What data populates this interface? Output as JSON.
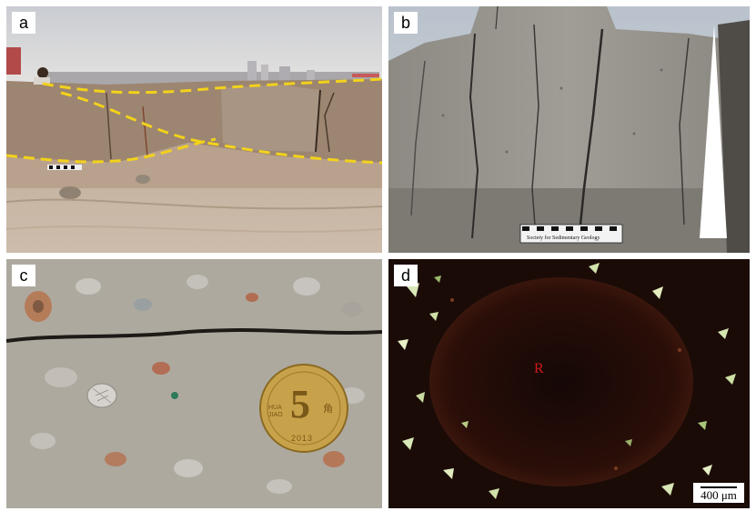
{
  "figure": {
    "panels": [
      {
        "label": "a"
      },
      {
        "label": "b"
      },
      {
        "label": "c",
        "coin_value": "5",
        "coin_small_text": "HUA JIAO",
        "coin_year": "2013",
        "coin_char": "角"
      },
      {
        "label": "d",
        "grain_label": "R",
        "scale_label": "400 μm"
      }
    ],
    "panel_b_card_text": "Society for Sedimentary Geology",
    "colors": {
      "boundary_line": "#f2d21b",
      "grain_label": "#d01818",
      "coin": "#c8a24a"
    }
  }
}
